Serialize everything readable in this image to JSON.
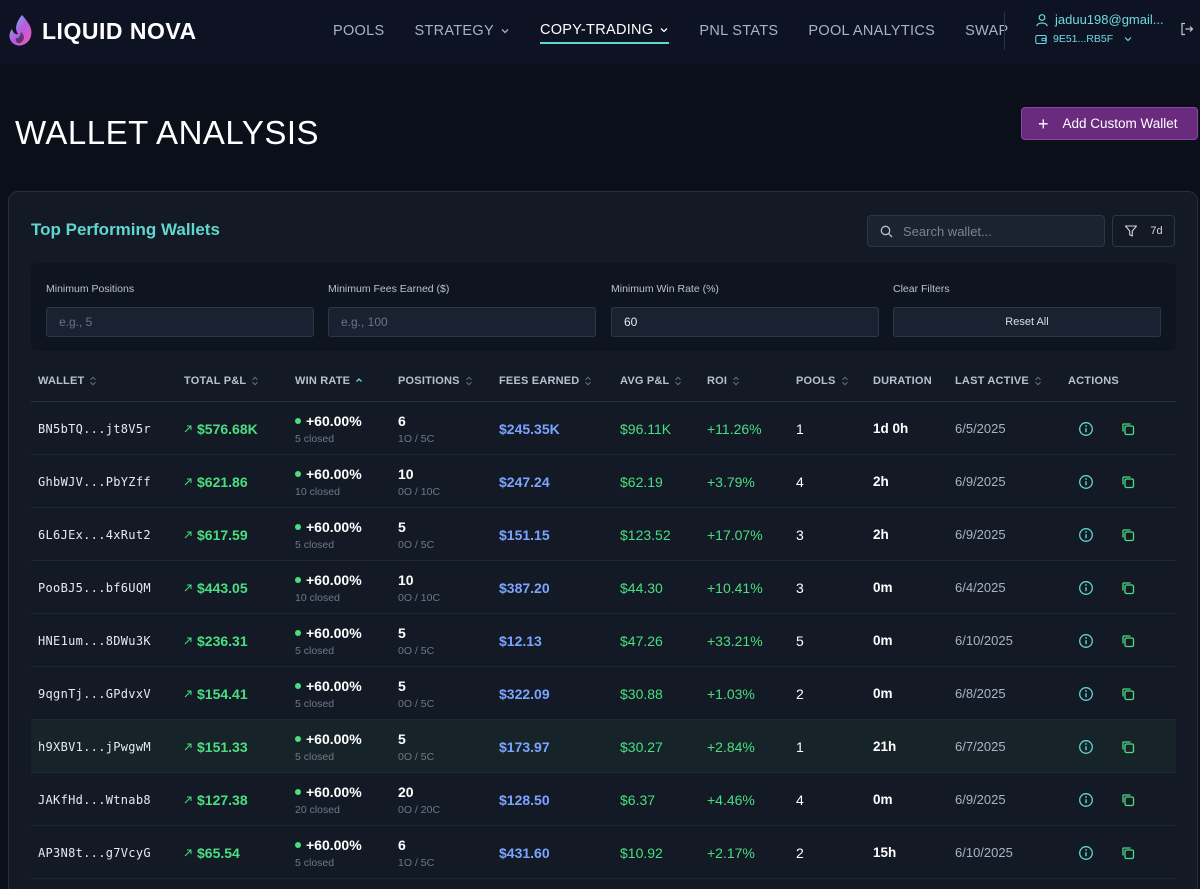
{
  "brand": {
    "name": "LIQUID NOVA"
  },
  "nav": {
    "links": [
      {
        "label": "POOLS"
      },
      {
        "label": "STRATEGY"
      },
      {
        "label": "COPY-TRADING"
      },
      {
        "label": "PNL STATS"
      },
      {
        "label": "POOL ANALYTICS"
      },
      {
        "label": "SWAP"
      }
    ],
    "user": {
      "email": "jaduu198@gmail...",
      "wallet": "9E51...RB5F"
    }
  },
  "header": {
    "title": "WALLET ANALYSIS",
    "add_button": "Add Custom Wallet"
  },
  "card": {
    "title": "Top Performing Wallets",
    "search_placeholder": "Search wallet...",
    "period": "7d"
  },
  "filters": {
    "min_positions": {
      "label": "Minimum Positions",
      "placeholder": "e.g., 5",
      "value": ""
    },
    "min_fees": {
      "label": "Minimum Fees Earned ($)",
      "placeholder": "e.g., 100",
      "value": ""
    },
    "min_winrate": {
      "label": "Minimum Win Rate (%)",
      "placeholder": "",
      "value": "60"
    },
    "clear": {
      "label": "Clear Filters",
      "button": "Reset All"
    }
  },
  "table": {
    "columns": [
      "WALLET",
      "TOTAL P&L",
      "WIN RATE",
      "POSITIONS",
      "FEES EARNED",
      "AVG P&L",
      "ROI",
      "POOLS",
      "DURATION",
      "LAST ACTIVE",
      "ACTIONS"
    ],
    "rows": [
      {
        "wallet": "BN5bTQ...jt8V5r",
        "pnl": "$576.68K",
        "win": "+60.00%",
        "closed": "5 closed",
        "positions": "6",
        "pos_sub": "1O / 5C",
        "fees": "$245.35K",
        "avg": "$96.11K",
        "roi": "+11.26%",
        "pools": "1",
        "duration": "1d 0h",
        "last": "6/5/2025"
      },
      {
        "wallet": "GhbWJV...PbYZff",
        "pnl": "$621.86",
        "win": "+60.00%",
        "closed": "10 closed",
        "positions": "10",
        "pos_sub": "0O / 10C",
        "fees": "$247.24",
        "avg": "$62.19",
        "roi": "+3.79%",
        "pools": "4",
        "duration": "2h",
        "last": "6/9/2025"
      },
      {
        "wallet": "6L6JEx...4xRut2",
        "pnl": "$617.59",
        "win": "+60.00%",
        "closed": "5 closed",
        "positions": "5",
        "pos_sub": "0O / 5C",
        "fees": "$151.15",
        "avg": "$123.52",
        "roi": "+17.07%",
        "pools": "3",
        "duration": "2h",
        "last": "6/9/2025"
      },
      {
        "wallet": "PooBJ5...bf6UQM",
        "pnl": "$443.05",
        "win": "+60.00%",
        "closed": "10 closed",
        "positions": "10",
        "pos_sub": "0O / 10C",
        "fees": "$387.20",
        "avg": "$44.30",
        "roi": "+10.41%",
        "pools": "3",
        "duration": "0m",
        "last": "6/4/2025"
      },
      {
        "wallet": "HNE1um...8DWu3K",
        "pnl": "$236.31",
        "win": "+60.00%",
        "closed": "5 closed",
        "positions": "5",
        "pos_sub": "0O / 5C",
        "fees": "$12.13",
        "avg": "$47.26",
        "roi": "+33.21%",
        "pools": "5",
        "duration": "0m",
        "last": "6/10/2025"
      },
      {
        "wallet": "9qgnTj...GPdvxV",
        "pnl": "$154.41",
        "win": "+60.00%",
        "closed": "5 closed",
        "positions": "5",
        "pos_sub": "0O / 5C",
        "fees": "$322.09",
        "avg": "$30.88",
        "roi": "+1.03%",
        "pools": "2",
        "duration": "0m",
        "last": "6/8/2025"
      },
      {
        "wallet": "h9XBV1...jPwgwM",
        "pnl": "$151.33",
        "win": "+60.00%",
        "closed": "5 closed",
        "positions": "5",
        "pos_sub": "0O / 5C",
        "fees": "$173.97",
        "avg": "$30.27",
        "roi": "+2.84%",
        "pools": "1",
        "duration": "21h",
        "last": "6/7/2025"
      },
      {
        "wallet": "JAKfHd...Wtnab8",
        "pnl": "$127.38",
        "win": "+60.00%",
        "closed": "20 closed",
        "positions": "20",
        "pos_sub": "0O / 20C",
        "fees": "$128.50",
        "avg": "$6.37",
        "roi": "+4.46%",
        "pools": "4",
        "duration": "0m",
        "last": "6/9/2025"
      },
      {
        "wallet": "AP3N8t...g7VcyG",
        "pnl": "$65.54",
        "win": "+60.00%",
        "closed": "5 closed",
        "positions": "6",
        "pos_sub": "1O / 5C",
        "fees": "$431.60",
        "avg": "$10.92",
        "roi": "+2.17%",
        "pools": "2",
        "duration": "15h",
        "last": "6/10/2025"
      }
    ],
    "highlighted_row": 6
  },
  "colors": {
    "accent": "#5fd7cf",
    "profit": "#4ade80",
    "fees": "#7ba4ff",
    "button": "#6a2b7f"
  },
  "icons": {
    "logo": "flame-logo-icon",
    "user": "user-icon",
    "wallet": "wallet-icon",
    "logout": "logout-icon",
    "search": "search-icon",
    "filter": "filter-icon",
    "info": "info-icon",
    "copy": "copy-icon"
  }
}
